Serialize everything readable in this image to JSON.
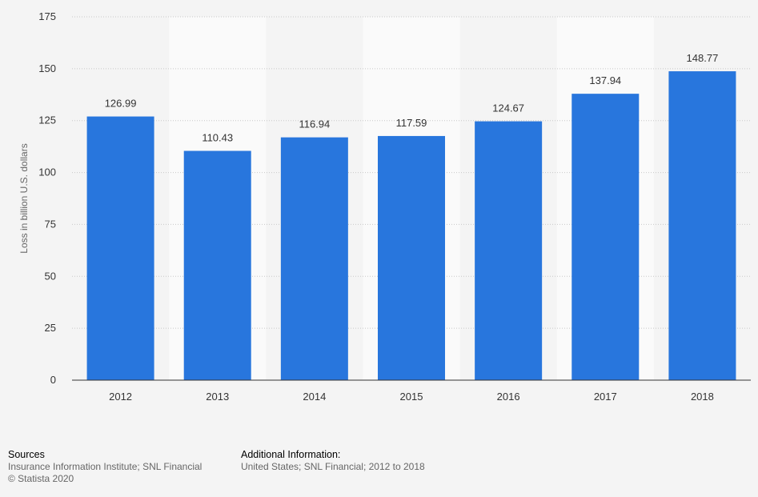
{
  "chart_data": {
    "type": "bar",
    "categories": [
      "2012",
      "2013",
      "2014",
      "2015",
      "2016",
      "2017",
      "2018"
    ],
    "values": [
      126.99,
      110.43,
      116.94,
      117.59,
      124.67,
      137.94,
      148.77
    ],
    "value_labels": [
      "126.99",
      "110.43",
      "116.94",
      "117.59",
      "124.67",
      "137.94",
      "148.77"
    ],
    "ylabel": "Loss in billion U.S. dollars",
    "xlabel": "",
    "ylim": [
      0,
      175
    ],
    "yticks": [
      "0",
      "25",
      "50",
      "75",
      "100",
      "125",
      "150",
      "175"
    ],
    "grid": true,
    "bar_color": "#2876dd"
  },
  "footer": {
    "sources_heading": "Sources",
    "sources_line1": "Insurance Information Institute; SNL Financial",
    "sources_line2": "© Statista 2020",
    "additional_heading": "Additional Information:",
    "additional_line1": "United States; SNL Financial; 2012 to 2018"
  }
}
